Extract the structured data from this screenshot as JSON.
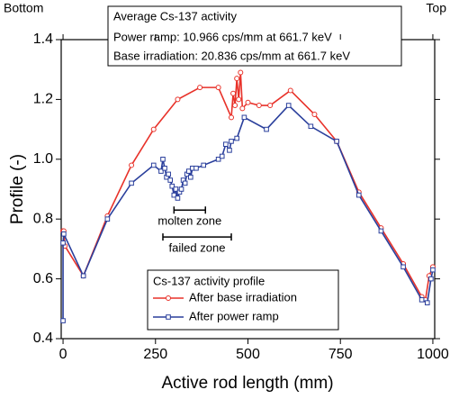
{
  "chart_data": {
    "type": "line",
    "x_label": "Active rod length (mm)",
    "y_label": "Profile (-)",
    "corner_labels": {
      "left": "Bottom",
      "right": "Top"
    },
    "info_box": [
      "Average Cs-137 activity",
      "Power ramp: 10.966 cps/mm at 661.7 keV",
      "Base irradiation: 20.836 cps/mm at 661.7 keV"
    ],
    "legend_title": "Cs-137 activity profile",
    "annotations": [
      {
        "text": "molten zone",
        "x": [
          300,
          385
        ],
        "y": 0.83
      },
      {
        "text": "failed zone",
        "x": [
          270,
          455
        ],
        "y": 0.74
      }
    ],
    "xlim": [
      -5,
      1005
    ],
    "xticks": [
      0,
      250,
      500,
      750,
      1000
    ],
    "ylim": [
      0.4,
      1.4
    ],
    "yticks": [
      0.4,
      0.6,
      0.8,
      {
        "value": 1.0,
        "label": "1.0"
      },
      1.2,
      1.4
    ],
    "series": [
      {
        "name": "After base irradiation",
        "color": "#e8322a",
        "marker": "circle",
        "x": [
          0,
          2,
          5,
          55,
          120,
          185,
          245,
          310,
          370,
          420,
          455,
          460,
          465,
          470,
          475,
          480,
          485,
          500,
          530,
          560,
          615,
          680,
          740,
          800,
          860,
          920,
          970,
          980,
          990,
          1000
        ],
        "values": [
          0.76,
          0.76,
          0.71,
          0.61,
          0.81,
          0.98,
          1.1,
          1.2,
          1.24,
          1.24,
          1.14,
          1.22,
          1.18,
          1.27,
          1.2,
          1.29,
          1.17,
          1.19,
          1.18,
          1.18,
          1.23,
          1.15,
          1.06,
          0.89,
          0.77,
          0.65,
          0.54,
          0.53,
          0.61,
          0.64
        ]
      },
      {
        "name": "After power ramp",
        "color": "#2a3f9c",
        "marker": "square",
        "x": [
          0,
          0,
          2,
          55,
          120,
          185,
          245,
          265,
          270,
          275,
          280,
          285,
          290,
          295,
          300,
          305,
          310,
          315,
          320,
          325,
          330,
          335,
          340,
          345,
          350,
          360,
          380,
          420,
          430,
          440,
          450,
          455,
          470,
          490,
          550,
          610,
          670,
          740,
          800,
          860,
          920,
          970,
          985,
          995,
          1000
        ],
        "values": [
          0.46,
          0.72,
          0.75,
          0.61,
          0.8,
          0.92,
          0.98,
          0.96,
          1.0,
          0.97,
          0.94,
          0.95,
          0.93,
          0.91,
          0.88,
          0.9,
          0.87,
          0.89,
          0.9,
          0.93,
          0.92,
          0.95,
          0.96,
          0.94,
          0.97,
          0.97,
          0.98,
          1.0,
          1.01,
          1.05,
          1.03,
          1.06,
          1.07,
          1.14,
          1.1,
          1.18,
          1.11,
          1.06,
          0.88,
          0.76,
          0.64,
          0.53,
          0.52,
          0.6,
          0.63
        ]
      }
    ]
  }
}
